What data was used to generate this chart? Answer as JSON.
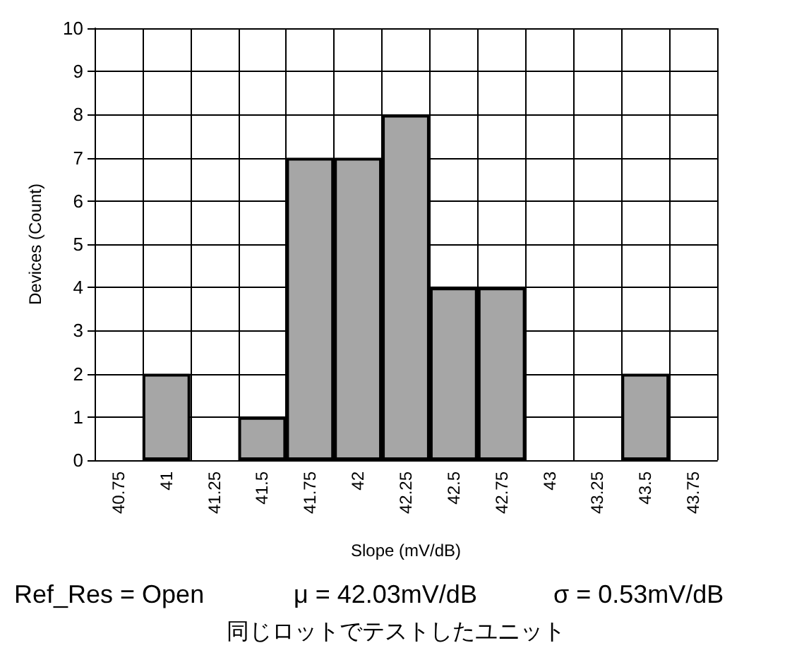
{
  "chart_data": {
    "type": "bar",
    "xlabel": "Slope (mV/dB)",
    "ylabel": "Devices (Count)",
    "categories": [
      "40.75",
      "41",
      "41.25",
      "41.5",
      "41.75",
      "42",
      "42.25",
      "42.5",
      "42.75",
      "43",
      "43.25",
      "43.5",
      "43.75"
    ],
    "values": [
      0,
      2,
      0,
      1,
      7,
      7,
      8,
      4,
      4,
      0,
      0,
      2,
      0
    ],
    "color": "#a6a6a6",
    "ylim": [
      0,
      10
    ],
    "yticks": [
      0,
      1,
      2,
      3,
      4,
      5,
      6,
      7,
      8,
      9,
      10
    ],
    "grid": true,
    "annotations": [
      "Ref_Res = Open",
      "μ = 42.03mV/dB",
      "σ = 0.53mV/dB",
      "同じロットでテストしたユニット"
    ]
  }
}
